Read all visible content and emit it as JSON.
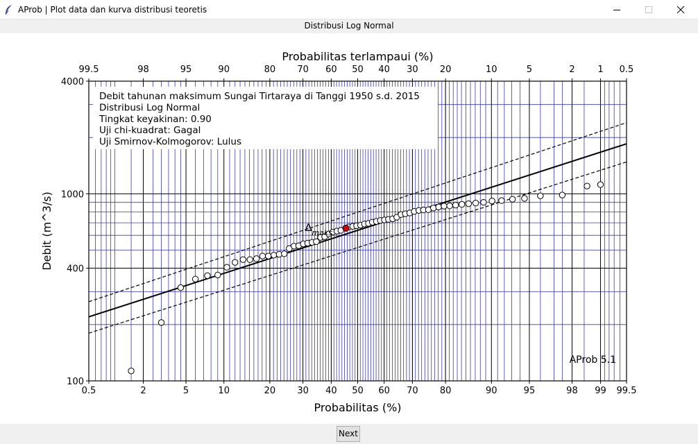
{
  "window": {
    "title": "AProb | Plot data dan kurva distribusi teoretis",
    "app_icon": "feather-icon"
  },
  "subtitle": "Distribusi Log Normal",
  "next_button": "Next",
  "chart_data": {
    "type": "scatter",
    "x_scale": "normal-probability",
    "y_scale": "log",
    "xlabel": "Probabilitas (%)",
    "xlabel_top": "Probabilitas terlampaui (%)",
    "ylabel": "Debit (m^3/s)",
    "xlim": [
      0.5,
      99.5
    ],
    "ylim": [
      100,
      4000
    ],
    "x_ticks": [
      "0.5",
      "2",
      "5",
      "10",
      "20",
      "30",
      "40",
      "50",
      "60",
      "70",
      "80",
      "90",
      "95",
      "98",
      "99",
      "99.5"
    ],
    "x_ticks_top": [
      "99.5",
      "98",
      "95",
      "90",
      "80",
      "70",
      "60",
      "50",
      "40",
      "30",
      "20",
      "10",
      "5",
      "2",
      "1",
      "0.5"
    ],
    "y_ticks": [
      "100",
      "400",
      "1000",
      "4000"
    ],
    "info_lines": [
      "Debit tahunan maksimum Sungai Tirtaraya di Tanggi 1950 s.d. 2015",
      "Distribusi Log Normal",
      "   Tingkat keyakinan: 0.90",
      "   Uji chi-kuadrat: Gagal",
      "   Uji Smirnov-Kolmogorov: Lulus"
    ],
    "watermark": "AProb 5.1",
    "dmax_label": "Δ",
    "dmax_sub": "maks",
    "fitted_line": {
      "x": [
        0.5,
        99.5
      ],
      "y": [
        220,
        1850
      ]
    },
    "confidence_lower": {
      "x": [
        0.5,
        99.5
      ],
      "y": [
        180,
        1480
      ]
    },
    "confidence_upper": {
      "x": [
        0.5,
        99.5
      ],
      "y": [
        265,
        2400
      ]
    },
    "highlight_point": {
      "x": 45.5,
      "y": 655
    },
    "points": [
      {
        "x": 1.5,
        "y": 113
      },
      {
        "x": 3.0,
        "y": 205
      },
      {
        "x": 4.5,
        "y": 315
      },
      {
        "x": 6.0,
        "y": 350
      },
      {
        "x": 7.5,
        "y": 365
      },
      {
        "x": 9.0,
        "y": 368
      },
      {
        "x": 10.5,
        "y": 405
      },
      {
        "x": 12.0,
        "y": 430
      },
      {
        "x": 13.6,
        "y": 445
      },
      {
        "x": 15.1,
        "y": 445
      },
      {
        "x": 16.6,
        "y": 450
      },
      {
        "x": 18.1,
        "y": 465
      },
      {
        "x": 19.6,
        "y": 465
      },
      {
        "x": 21.1,
        "y": 470
      },
      {
        "x": 22.6,
        "y": 475
      },
      {
        "x": 24.1,
        "y": 478
      },
      {
        "x": 25.6,
        "y": 510
      },
      {
        "x": 27.1,
        "y": 525
      },
      {
        "x": 28.6,
        "y": 528
      },
      {
        "x": 30.1,
        "y": 540
      },
      {
        "x": 31.6,
        "y": 545
      },
      {
        "x": 33.1,
        "y": 550
      },
      {
        "x": 34.6,
        "y": 555
      },
      {
        "x": 36.1,
        "y": 585
      },
      {
        "x": 37.6,
        "y": 590
      },
      {
        "x": 39.1,
        "y": 610
      },
      {
        "x": 40.6,
        "y": 625
      },
      {
        "x": 42.1,
        "y": 632
      },
      {
        "x": 43.6,
        "y": 638
      },
      {
        "x": 46.6,
        "y": 665
      },
      {
        "x": 48.1,
        "y": 670
      },
      {
        "x": 49.6,
        "y": 675
      },
      {
        "x": 51.1,
        "y": 680
      },
      {
        "x": 52.6,
        "y": 690
      },
      {
        "x": 54.1,
        "y": 695
      },
      {
        "x": 55.6,
        "y": 705
      },
      {
        "x": 57.1,
        "y": 712
      },
      {
        "x": 58.6,
        "y": 720
      },
      {
        "x": 60.1,
        "y": 725
      },
      {
        "x": 61.6,
        "y": 730
      },
      {
        "x": 63.1,
        "y": 735
      },
      {
        "x": 64.6,
        "y": 750
      },
      {
        "x": 66.1,
        "y": 775
      },
      {
        "x": 67.6,
        "y": 782
      },
      {
        "x": 69.1,
        "y": 790
      },
      {
        "x": 70.6,
        "y": 805
      },
      {
        "x": 72.1,
        "y": 815
      },
      {
        "x": 73.6,
        "y": 820
      },
      {
        "x": 75.1,
        "y": 822
      },
      {
        "x": 76.6,
        "y": 840
      },
      {
        "x": 78.1,
        "y": 850
      },
      {
        "x": 79.6,
        "y": 860
      },
      {
        "x": 81.1,
        "y": 862
      },
      {
        "x": 82.6,
        "y": 870
      },
      {
        "x": 84.1,
        "y": 878
      },
      {
        "x": 85.6,
        "y": 885
      },
      {
        "x": 87.1,
        "y": 892
      },
      {
        "x": 88.6,
        "y": 900
      },
      {
        "x": 90.1,
        "y": 915
      },
      {
        "x": 91.6,
        "y": 920
      },
      {
        "x": 93.1,
        "y": 935
      },
      {
        "x": 94.5,
        "y": 945
      },
      {
        "x": 96.0,
        "y": 975
      },
      {
        "x": 97.5,
        "y": 985
      },
      {
        "x": 98.6,
        "y": 1100
      },
      {
        "x": 99.0,
        "y": 1120
      }
    ]
  },
  "colors": {
    "grid_minor": "#3a3aa8",
    "grid_major": "#000000",
    "highlight": "#e00000",
    "marker_face": "#ffffff",
    "marker_edge": "#000000"
  }
}
